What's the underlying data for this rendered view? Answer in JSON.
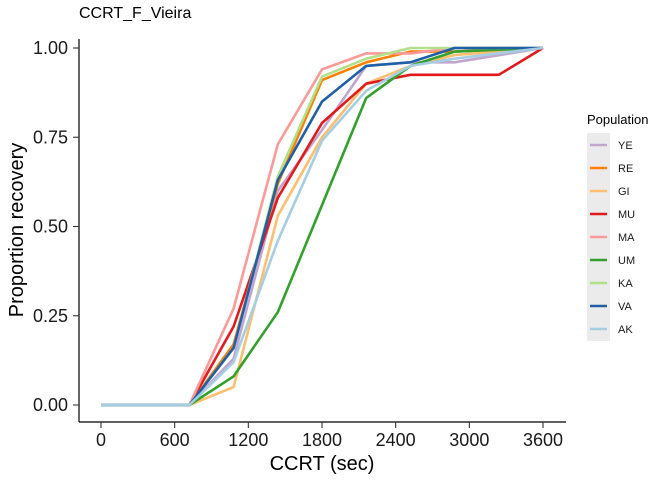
{
  "chart_data": {
    "type": "line",
    "title": "CCRT_F_Vieira",
    "xlabel": "CCRT (sec)",
    "ylabel": "Proportion recovery",
    "xlim": [
      0,
      3600
    ],
    "ylim": [
      0,
      1
    ],
    "x_ticks": [
      0,
      600,
      1200,
      1800,
      2400,
      3000,
      3600
    ],
    "x_tick_labels": [
      "0",
      "600",
      "1200",
      "1800",
      "2400",
      "3000",
      "3600"
    ],
    "y_ticks": [
      0,
      0.25,
      0.5,
      0.75,
      1
    ],
    "y_tick_labels": [
      "0.00",
      "0.25",
      "0.50",
      "0.75",
      "1.00"
    ],
    "grid": false,
    "legend": {
      "title": "Population",
      "position": "right"
    },
    "series": [
      {
        "name": "YE",
        "color": "#c2a5cf",
        "points": [
          [
            0,
            0
          ],
          [
            720,
            0
          ],
          [
            1080,
            0.13
          ],
          [
            1440,
            0.6
          ],
          [
            1800,
            0.77
          ],
          [
            2160,
            0.95
          ],
          [
            2520,
            0.96
          ],
          [
            2880,
            0.96
          ],
          [
            3600,
            1.0
          ]
        ]
      },
      {
        "name": "RE",
        "color": "#ff7f00",
        "points": [
          [
            0,
            0
          ],
          [
            720,
            0
          ],
          [
            1080,
            0.17
          ],
          [
            1440,
            0.62
          ],
          [
            1800,
            0.91
          ],
          [
            2160,
            0.96
          ],
          [
            2520,
            0.99
          ],
          [
            2880,
            0.99
          ],
          [
            3600,
            1.0
          ]
        ]
      },
      {
        "name": "GI",
        "color": "#fdbf6f",
        "points": [
          [
            0,
            0
          ],
          [
            720,
            0
          ],
          [
            1080,
            0.05
          ],
          [
            1440,
            0.53
          ],
          [
            1800,
            0.75
          ],
          [
            2160,
            0.9
          ],
          [
            2520,
            0.95
          ],
          [
            2880,
            0.98
          ],
          [
            3600,
            1.0
          ]
        ]
      },
      {
        "name": "MU",
        "color": "#e31a1c",
        "points": [
          [
            0,
            0
          ],
          [
            720,
            0
          ],
          [
            1080,
            0.22
          ],
          [
            1440,
            0.58
          ],
          [
            1800,
            0.79
          ],
          [
            2160,
            0.9
          ],
          [
            2520,
            0.925
          ],
          [
            3240,
            0.925
          ],
          [
            3600,
            1.0
          ]
        ]
      },
      {
        "name": "MA",
        "color": "#fb9a99",
        "points": [
          [
            0,
            0
          ],
          [
            720,
            0
          ],
          [
            1080,
            0.27
          ],
          [
            1440,
            0.73
          ],
          [
            1800,
            0.94
          ],
          [
            2160,
            0.985
          ],
          [
            2520,
            0.985
          ],
          [
            2880,
            1.0
          ],
          [
            3600,
            1.0
          ]
        ]
      },
      {
        "name": "UM",
        "color": "#33a02c",
        "points": [
          [
            0,
            0
          ],
          [
            720,
            0
          ],
          [
            1080,
            0.08
          ],
          [
            1440,
            0.26
          ],
          [
            2160,
            0.86
          ],
          [
            2520,
            0.95
          ],
          [
            2880,
            0.99
          ],
          [
            3600,
            1.0
          ]
        ]
      },
      {
        "name": "KA",
        "color": "#b2df8a",
        "points": [
          [
            0,
            0
          ],
          [
            720,
            0
          ],
          [
            1080,
            0.16
          ],
          [
            1440,
            0.64
          ],
          [
            1800,
            0.92
          ],
          [
            2160,
            0.97
          ],
          [
            2520,
            1.0
          ],
          [
            3600,
            1.0
          ]
        ]
      },
      {
        "name": "VA",
        "color": "#1f5fa8",
        "points": [
          [
            0,
            0
          ],
          [
            720,
            0
          ],
          [
            1080,
            0.16
          ],
          [
            1440,
            0.63
          ],
          [
            1800,
            0.85
          ],
          [
            2160,
            0.95
          ],
          [
            2520,
            0.96
          ],
          [
            2880,
            1.0
          ],
          [
            3600,
            1.0
          ]
        ]
      },
      {
        "name": "AK",
        "color": "#a6cee3",
        "points": [
          [
            0,
            0
          ],
          [
            720,
            0
          ],
          [
            1080,
            0.12
          ],
          [
            1440,
            0.46
          ],
          [
            1800,
            0.74
          ],
          [
            2160,
            0.88
          ],
          [
            2520,
            0.95
          ],
          [
            2880,
            0.97
          ],
          [
            3600,
            1.0
          ]
        ]
      }
    ]
  }
}
